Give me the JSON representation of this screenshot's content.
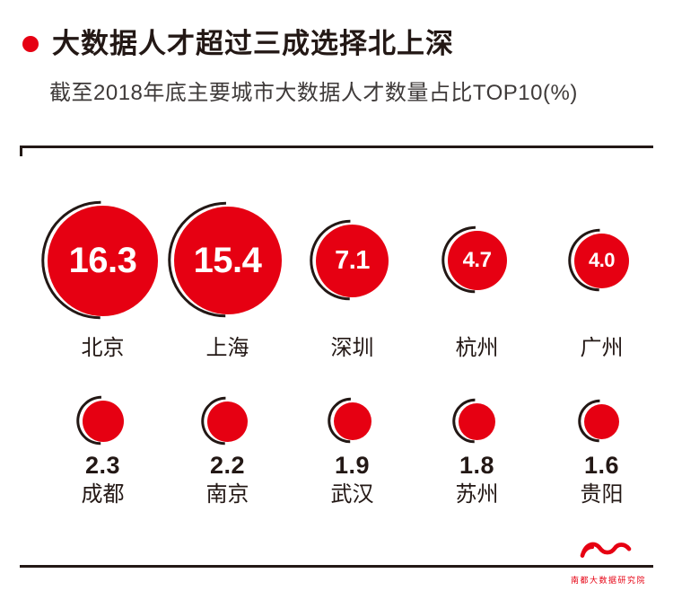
{
  "header": {
    "title": "大数据人才超过三成选择北上深",
    "subtitle": "截至2018年底主要城市大数据人才数量占比TOP10(%)"
  },
  "footer": {
    "brand": "南都大数据研究院"
  },
  "colors": {
    "accent": "#e60012",
    "ink": "#231815",
    "subtitle_text": "#3e3a39"
  },
  "chart_data": {
    "type": "bubble",
    "title": "大数据人才超过三成选择北上深",
    "subtitle": "截至2018年底主要城市大数据人才数量占比TOP10(%)",
    "unit": "%",
    "layout": {
      "rows": 2,
      "bubbles_per_row": 5,
      "size_scale": "area-proportional",
      "row1_value_position": "inside",
      "row2_value_position": "below"
    },
    "series": [
      {
        "city": "北京",
        "value": 16.3,
        "row": 1
      },
      {
        "city": "上海",
        "value": 15.4,
        "row": 1
      },
      {
        "city": "深圳",
        "value": 7.1,
        "row": 1
      },
      {
        "city": "杭州",
        "value": 4.7,
        "row": 1
      },
      {
        "city": "广州",
        "value": 4.0,
        "row": 1
      },
      {
        "city": "成都",
        "value": 2.3,
        "row": 2
      },
      {
        "city": "南京",
        "value": 2.2,
        "row": 2
      },
      {
        "city": "武汉",
        "value": 1.9,
        "row": 2
      },
      {
        "city": "苏州",
        "value": 1.8,
        "row": 2
      },
      {
        "city": "贵阳",
        "value": 1.6,
        "row": 2
      }
    ]
  }
}
